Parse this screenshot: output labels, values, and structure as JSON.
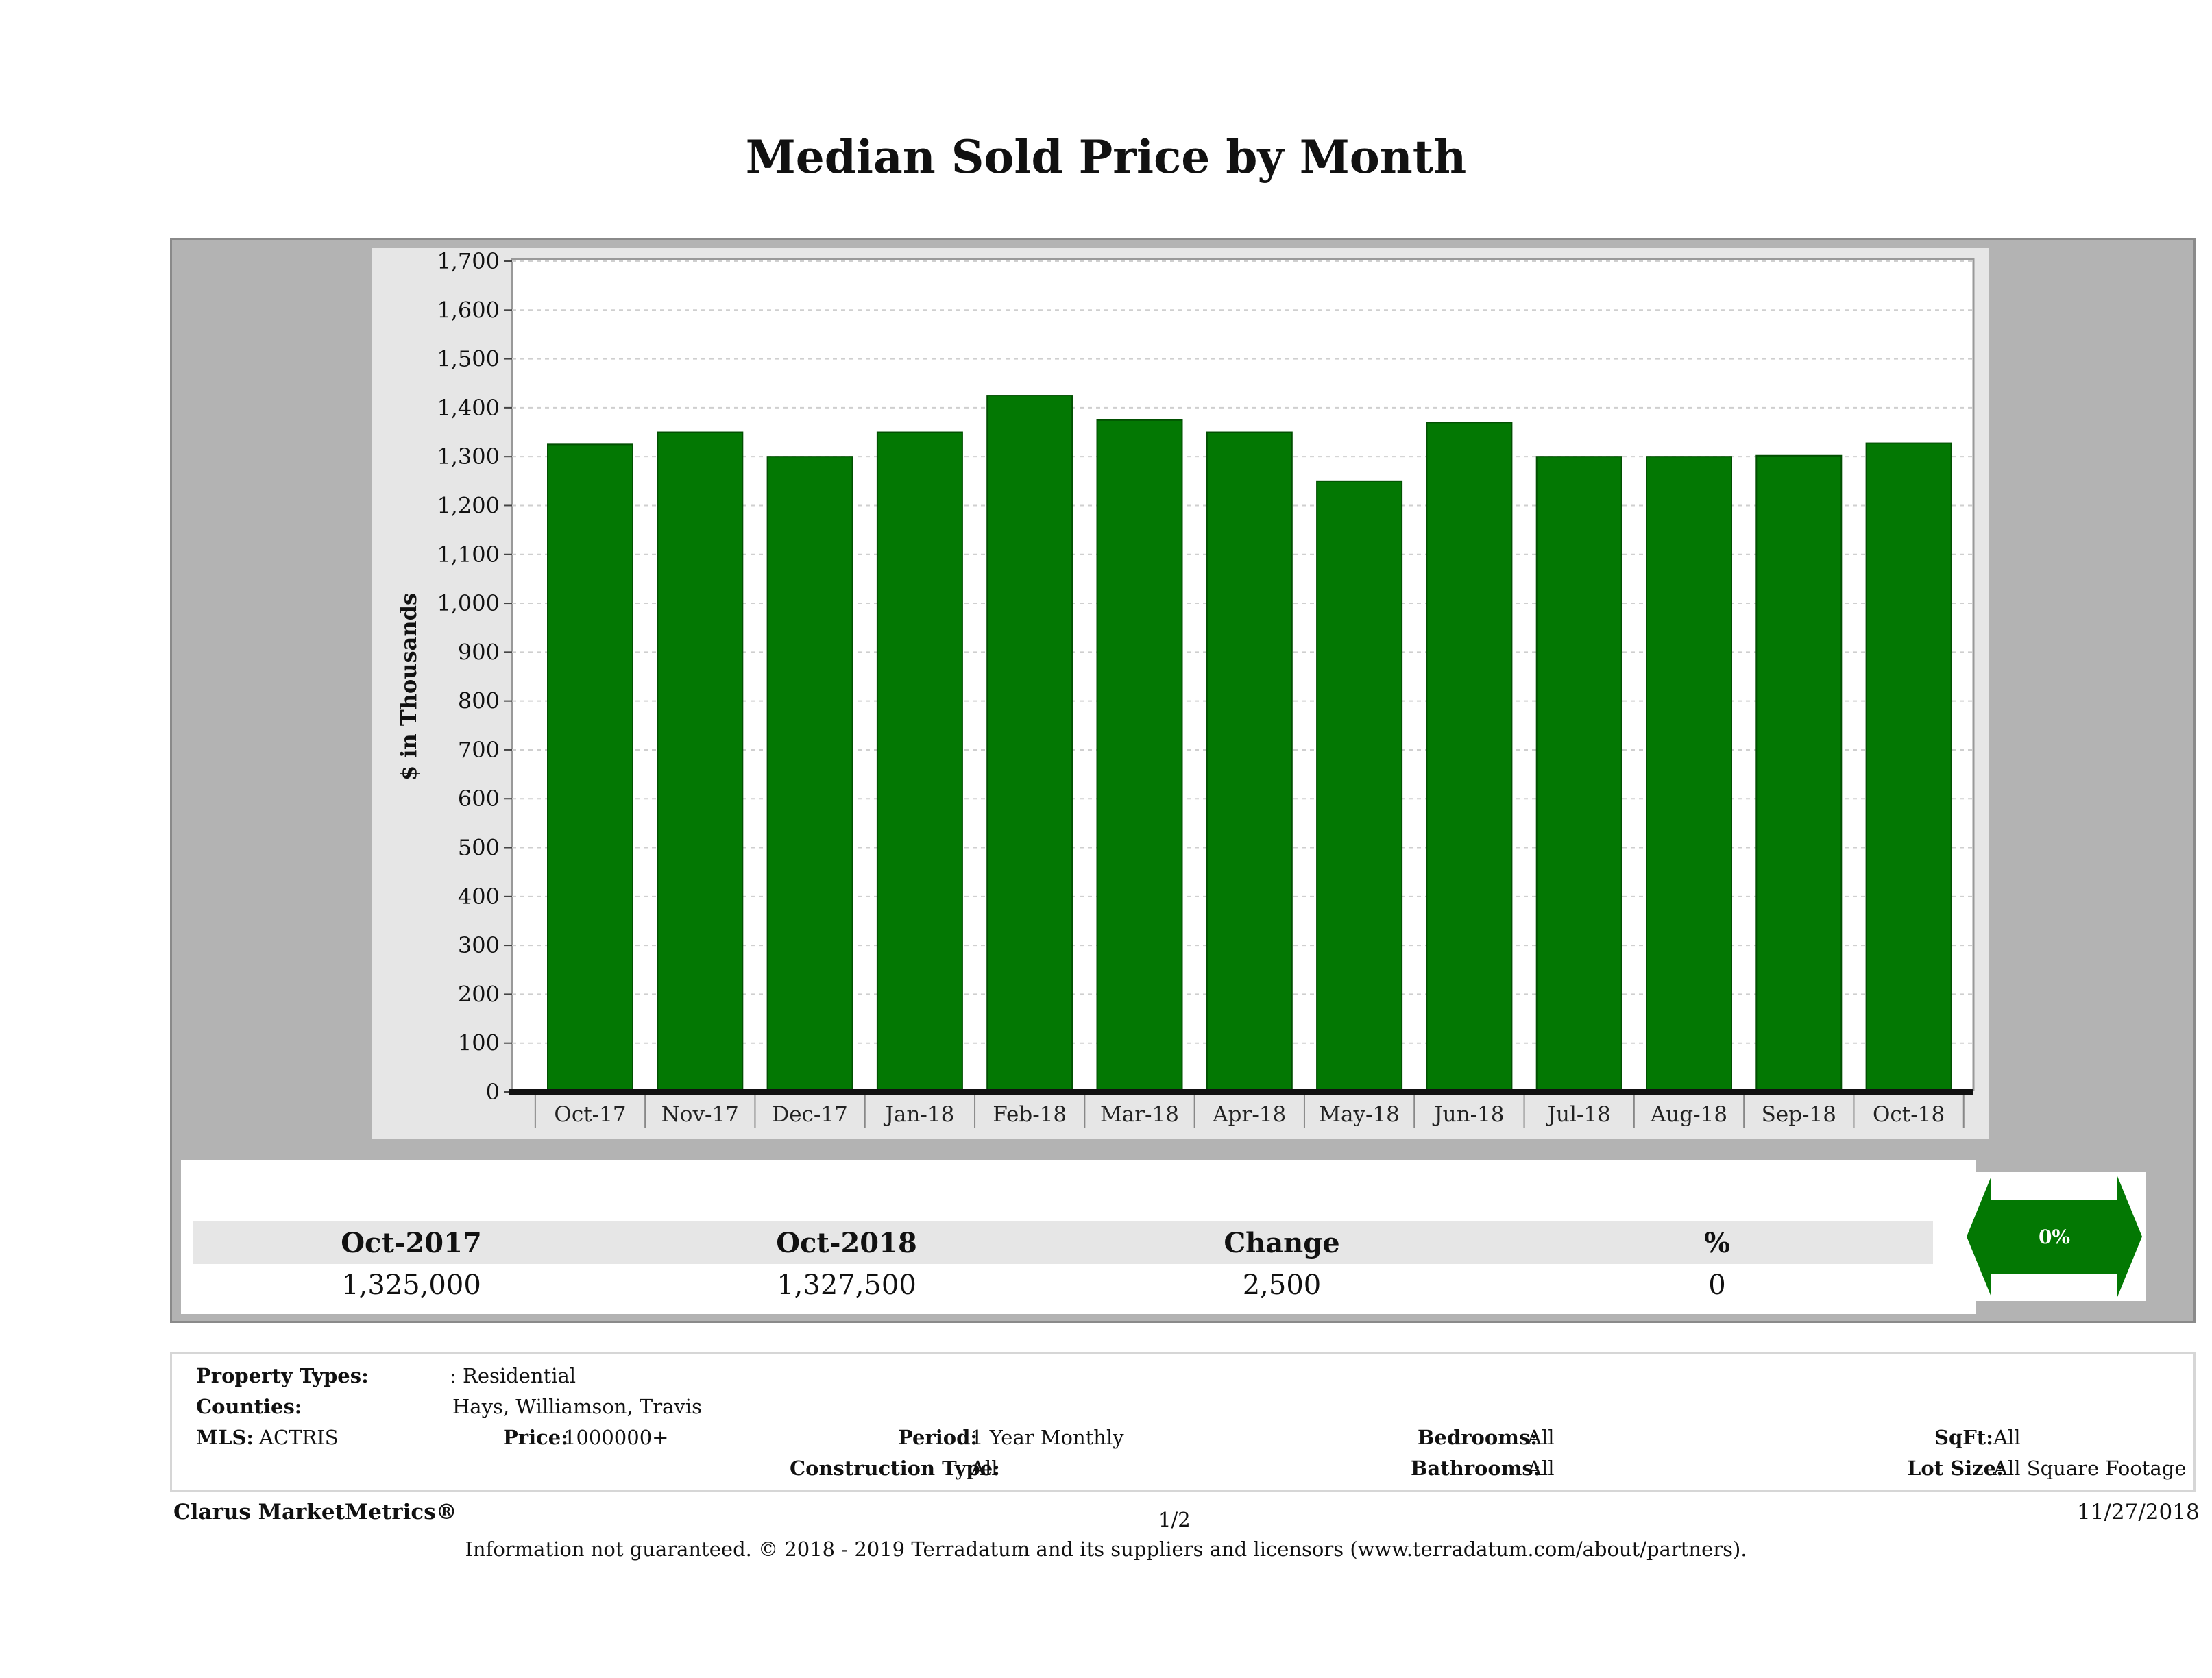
{
  "chart_data": {
    "type": "bar",
    "title": "Median Sold Price by Month",
    "ylabel": "$ in Thousands",
    "xlabel": "",
    "categories": [
      "Oct-17",
      "Nov-17",
      "Dec-17",
      "Jan-18",
      "Feb-18",
      "Mar-18",
      "Apr-18",
      "May-18",
      "Jun-18",
      "Jul-18",
      "Aug-18",
      "Sep-18",
      "Oct-18"
    ],
    "values": [
      1325,
      1350,
      1300,
      1350,
      1425,
      1375,
      1350,
      1250,
      1370,
      1300,
      1300,
      1302,
      1327.5
    ],
    "ylim": [
      0,
      1700
    ],
    "yticks": [
      0,
      100,
      200,
      300,
      400,
      500,
      600,
      700,
      800,
      900,
      1000,
      1100,
      1200,
      1300,
      1400,
      1500,
      1600,
      1700
    ],
    "ytick_labels": [
      "0",
      "100",
      "200",
      "300",
      "400",
      "500",
      "600",
      "700",
      "800",
      "900",
      "1,000",
      "1,100",
      "1,200",
      "1,300",
      "1,400",
      "1,500",
      "1,600",
      "1,700"
    ],
    "grid": true,
    "bar_color": "#037803"
  },
  "summary": {
    "col1_label": "Oct-2017",
    "col2_label": "Oct-2018",
    "col3_label": "Change",
    "col4_label": "%",
    "col1_value": "1,325,000",
    "col2_value": "1,327,500",
    "col3_value": "2,500",
    "col4_value": "0",
    "arrow_text": "0%",
    "arrow_color": "#037803"
  },
  "filters": {
    "property_types_label": "Property Types:",
    "property_types_value": ": Residential",
    "counties_label": "Counties:",
    "counties_value": "Hays, Williamson, Travis",
    "mls_label": "MLS:",
    "mls_value": "ACTRIS",
    "price_label": "Price:",
    "price_value": "1000000+",
    "period_label": "Period:",
    "period_value": "1 Year Monthly",
    "construction_label": "Construction Type:",
    "construction_value": "All",
    "bedrooms_label": "Bedrooms:",
    "bedrooms_value": "All",
    "bathrooms_label": "Bathrooms:",
    "bathrooms_value": "All",
    "sqft_label": "SqFt:",
    "sqft_value": "All",
    "lot_label": "Lot Size:",
    "lot_value": "All Square Footage"
  },
  "footer": {
    "brand": "Clarus MarketMetrics®",
    "page": "1/2",
    "date": "11/27/2018",
    "note": "Information not guaranteed. © 2018 - 2019 Terradatum and its suppliers and licensors (www.terradatum.com/about/partners)."
  }
}
